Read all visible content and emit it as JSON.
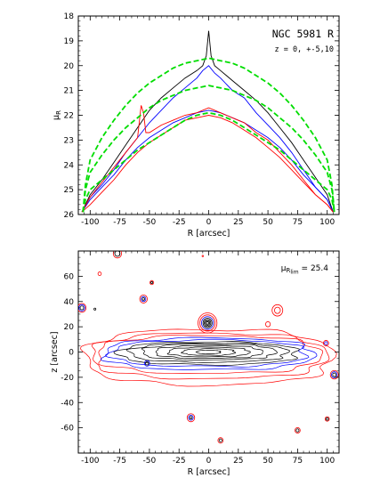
{
  "chart_data": [
    {
      "type": "line",
      "title": "NGC 5981 R",
      "subtitle": "z = 0, +-5,10",
      "xlabel": "R [arcsec]",
      "ylabel": "μ",
      "ylabel_sub": "R",
      "xlim": [
        -110,
        110
      ],
      "ylim": [
        26,
        18
      ],
      "x_reversed_y_axis_note": "",
      "xticks": [
        -100,
        -75,
        -50,
        -25,
        0,
        25,
        50,
        75,
        100
      ],
      "yticks": [
        18,
        19,
        20,
        21,
        22,
        23,
        24,
        25,
        26
      ],
      "series": [
        {
          "color": "#000000",
          "style": "solid",
          "x": [
            -107,
            -100,
            -90,
            -80,
            -70,
            -60,
            -50,
            -40,
            -30,
            -20,
            -10,
            -5,
            -2,
            0,
            2,
            5,
            10,
            20,
            30,
            40,
            50,
            60,
            70,
            80,
            90,
            100,
            105
          ],
          "y": [
            25.9,
            25.2,
            24.6,
            23.9,
            23.2,
            22.5,
            21.8,
            21.3,
            20.9,
            20.5,
            20.2,
            20.0,
            19.6,
            18.6,
            19.6,
            20.0,
            20.2,
            20.6,
            21.0,
            21.4,
            21.9,
            22.5,
            23.1,
            23.8,
            24.5,
            25.2,
            25.9
          ]
        },
        {
          "color": "#0000ff",
          "style": "solid",
          "x": [
            -107,
            -100,
            -90,
            -80,
            -70,
            -60,
            -50,
            -40,
            -30,
            -20,
            -10,
            -5,
            0,
            5,
            10,
            20,
            30,
            40,
            50,
            60,
            70,
            80,
            90,
            100,
            105
          ],
          "y": [
            25.9,
            25.3,
            24.8,
            24.2,
            23.5,
            22.9,
            22.3,
            21.8,
            21.3,
            20.9,
            20.5,
            20.2,
            20.0,
            20.3,
            20.5,
            21.0,
            21.3,
            21.9,
            22.4,
            22.9,
            23.5,
            24.2,
            24.9,
            25.4,
            25.9
          ]
        },
        {
          "color": "#0000ff",
          "style": "solid",
          "x": [
            -107,
            -100,
            -90,
            -80,
            -70,
            -60,
            -50,
            -40,
            -30,
            -20,
            -10,
            0,
            10,
            20,
            30,
            40,
            50,
            60,
            70,
            80,
            90,
            100,
            105
          ],
          "y": [
            25.9,
            25.4,
            24.9,
            24.4,
            23.8,
            23.3,
            22.9,
            22.6,
            22.3,
            22.1,
            21.9,
            21.8,
            21.9,
            22.1,
            22.3,
            22.6,
            22.9,
            23.3,
            23.8,
            24.4,
            24.9,
            25.4,
            25.9
          ]
        },
        {
          "color": "#ff0000",
          "style": "solid",
          "x": [
            -107,
            -100,
            -90,
            -80,
            -70,
            -60,
            -57,
            -55,
            -53,
            -50,
            -40,
            -30,
            -20,
            -10,
            0,
            10,
            20,
            30,
            40,
            50,
            60,
            70,
            80,
            90,
            100,
            105
          ],
          "y": [
            25.9,
            25.3,
            24.7,
            24.1,
            23.5,
            22.9,
            21.6,
            21.9,
            22.7,
            22.7,
            22.4,
            22.2,
            22.0,
            21.9,
            21.7,
            21.9,
            22.1,
            22.3,
            22.7,
            23.0,
            23.5,
            24.0,
            24.6,
            25.2,
            25.6,
            25.9
          ]
        },
        {
          "color": "#ff0000",
          "style": "solid",
          "x": [
            -107,
            -100,
            -90,
            -80,
            -70,
            -60,
            -50,
            -40,
            -30,
            -20,
            -10,
            0,
            10,
            20,
            30,
            40,
            50,
            60,
            70,
            80,
            90,
            100,
            105
          ],
          "y": [
            25.9,
            25.6,
            25.1,
            24.6,
            24.0,
            23.5,
            23.1,
            22.8,
            22.5,
            22.2,
            22.1,
            22.0,
            22.1,
            22.3,
            22.6,
            22.9,
            23.3,
            23.7,
            24.2,
            24.7,
            25.2,
            25.6,
            25.9
          ]
        },
        {
          "color": "#00dd00",
          "style": "dashed",
          "x": [
            -106,
            -104,
            -100,
            -90,
            -80,
            -70,
            -60,
            -50,
            -40,
            -30,
            -20,
            -10,
            0,
            10,
            20,
            30,
            40,
            50,
            60,
            70,
            80,
            90,
            100,
            104,
            106
          ],
          "y": [
            25.9,
            24.8,
            23.8,
            22.9,
            22.2,
            21.6,
            21.1,
            20.7,
            20.4,
            20.1,
            19.9,
            19.8,
            19.7,
            19.8,
            19.9,
            20.1,
            20.4,
            20.7,
            21.1,
            21.6,
            22.2,
            22.9,
            23.8,
            24.8,
            25.9
          ]
        },
        {
          "color": "#00dd00",
          "style": "dashed",
          "x": [
            -106,
            -104,
            -100,
            -90,
            -80,
            -70,
            -60,
            -50,
            -40,
            -30,
            -20,
            -10,
            0,
            10,
            20,
            30,
            40,
            50,
            60,
            70,
            80,
            90,
            100,
            104,
            106
          ],
          "y": [
            25.9,
            25.0,
            24.3,
            23.6,
            23.0,
            22.5,
            22.1,
            21.7,
            21.4,
            21.2,
            21.0,
            20.9,
            20.8,
            20.9,
            21.0,
            21.2,
            21.4,
            21.7,
            22.1,
            22.5,
            23.0,
            23.6,
            24.3,
            25.0,
            25.9
          ]
        },
        {
          "color": "#00dd00",
          "style": "dashed",
          "x": [
            -106,
            -104,
            -100,
            -90,
            -80,
            -70,
            -60,
            -50,
            -40,
            -30,
            -20,
            -10,
            0,
            10,
            20,
            30,
            40,
            50,
            60,
            70,
            80,
            90,
            100,
            104,
            106
          ],
          "y": [
            25.9,
            25.4,
            25.0,
            24.6,
            24.2,
            23.8,
            23.4,
            23.1,
            22.8,
            22.5,
            22.2,
            22.0,
            21.9,
            22.0,
            22.2,
            22.5,
            22.8,
            23.1,
            23.4,
            23.8,
            24.2,
            24.6,
            25.0,
            25.4,
            25.9
          ]
        }
      ]
    },
    {
      "type": "contour",
      "annotation": "μ",
      "annotation_sub": "R",
      "annotation_subsub": "lim",
      "annotation_value": "= 25.4",
      "xlabel": "R [arcsec]",
      "ylabel": "z [arcsec]",
      "xlim": [
        -110,
        110
      ],
      "ylim": [
        -80,
        80
      ],
      "xticks": [
        -100,
        -75,
        -50,
        -25,
        0,
        25,
        50,
        75,
        100
      ],
      "yticks": [
        -60,
        -40,
        -20,
        0,
        20,
        40,
        60
      ],
      "disk_contours": [
        {
          "color": "#ff0000",
          "a": 104,
          "b": 22,
          "zc": -4
        },
        {
          "color": "#ff0000",
          "a": 99,
          "b": 18,
          "zc": -3
        },
        {
          "color": "#ff0000",
          "a": 94,
          "b": 15,
          "zc": -2
        },
        {
          "color": "#0000ff",
          "a": 88,
          "b": 12.5,
          "zc": -1.5
        },
        {
          "color": "#0000ff",
          "a": 82,
          "b": 10.5,
          "zc": -1
        },
        {
          "color": "#000000",
          "a": 75,
          "b": 9,
          "zc": -1
        },
        {
          "color": "#000000",
          "a": 66,
          "b": 7.5,
          "zc": -0.5
        },
        {
          "color": "#000000",
          "a": 56,
          "b": 6.2,
          "zc": 0
        },
        {
          "color": "#000000",
          "a": 45,
          "b": 5,
          "zc": 0
        },
        {
          "color": "#000000",
          "a": 34,
          "b": 3.8,
          "zc": 0
        },
        {
          "color": "#000000",
          "a": 22,
          "b": 2.6,
          "zc": 0
        },
        {
          "color": "#000000",
          "a": 10,
          "b": 1.4,
          "zc": 0
        }
      ],
      "sources": [
        {
          "x": -107,
          "z": 35,
          "r": [
            3.5,
            2.5,
            1.5
          ],
          "colors": [
            "#ff0000",
            "#0000ff",
            "#000000"
          ]
        },
        {
          "x": -96,
          "z": 34,
          "r": [
            0.8
          ],
          "colors": [
            "#000000"
          ]
        },
        {
          "x": -77,
          "z": 78,
          "r": [
            3.5,
            2.2
          ],
          "colors": [
            "#ff0000",
            "#000000"
          ]
        },
        {
          "x": -55,
          "z": 42,
          "r": [
            3.2,
            2.0,
            1.0
          ],
          "colors": [
            "#ff0000",
            "#0000ff",
            "#000000"
          ]
        },
        {
          "x": -48,
          "z": 55,
          "r": [
            1.6,
            0.8
          ],
          "colors": [
            "#ff0000",
            "#000000"
          ]
        },
        {
          "x": -92,
          "z": 62,
          "r": [
            1.4
          ],
          "colors": [
            "#ff0000"
          ]
        },
        {
          "x": -15,
          "z": -52,
          "r": [
            3.2,
            2.0,
            1.0
          ],
          "colors": [
            "#ff0000",
            "#0000ff",
            "#000000"
          ]
        },
        {
          "x": 10,
          "z": -70,
          "r": [
            2.2,
            1.2
          ],
          "colors": [
            "#ff0000",
            "#000000"
          ]
        },
        {
          "x": 75,
          "z": -62,
          "r": [
            2.2,
            1.2
          ],
          "colors": [
            "#ff0000",
            "#000000"
          ]
        },
        {
          "x": 100,
          "z": -53,
          "r": [
            1.8,
            1.0
          ],
          "colors": [
            "#ff0000",
            "#000000"
          ]
        },
        {
          "x": 106,
          "z": -18,
          "r": [
            3.4,
            2.4,
            1.4
          ],
          "colors": [
            "#ff0000",
            "#0000ff",
            "#000000"
          ]
        },
        {
          "x": 99,
          "z": 7,
          "r": [
            2.2,
            1.2
          ],
          "colors": [
            "#ff0000",
            "#0000ff"
          ]
        },
        {
          "x": -52,
          "z": -9,
          "r": [
            2.2,
            1.3
          ],
          "colors": [
            "#0000ff",
            "#000000"
          ]
        },
        {
          "x": -1,
          "z": 23,
          "r": [
            8,
            6.4,
            5.0,
            3.8,
            2.8,
            1.9,
            1.0
          ],
          "colors": [
            "#ff0000",
            "#ff0000",
            "#0000ff",
            "#000000",
            "#000000",
            "#000000",
            "#000000"
          ]
        },
        {
          "x": 50,
          "z": 22,
          "r": [
            2.0
          ],
          "colors": [
            "#ff0000"
          ]
        },
        {
          "x": 58,
          "z": 33,
          "r": [
            4.5,
            2.5
          ],
          "colors": [
            "#ff0000",
            "#ff0000"
          ]
        },
        {
          "x": -5,
          "z": 76,
          "r": [
            0.6
          ],
          "colors": [
            "#ff0000"
          ]
        }
      ]
    }
  ]
}
